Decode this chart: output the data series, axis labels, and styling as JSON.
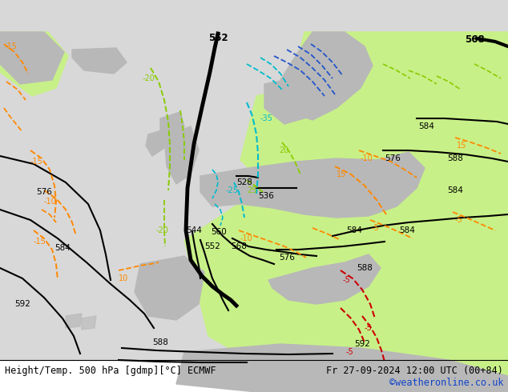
{
  "title_left": "Height/Temp. 500 hPa [gdmp][°C] ECMWF",
  "title_right": "Fr 27-09-2024 12:00 UTC (00+84)",
  "credit": "©weatheronline.co.uk",
  "fig_w": 6.34,
  "fig_h": 4.9,
  "dpi": 100,
  "colors": {
    "bg": "#d8d8d8",
    "green": "#c8f088",
    "gray_land": "#b8b8b8",
    "white": "#ffffff",
    "black": "#000000",
    "orange": "#ff8800",
    "red": "#cc0000",
    "cyan": "#00bbcc",
    "lime": "#88cc00",
    "blue": "#2255cc"
  }
}
